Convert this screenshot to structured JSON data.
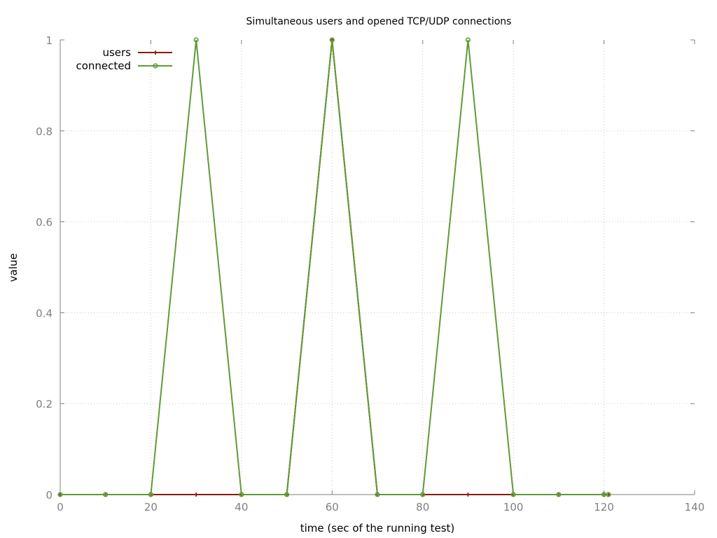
{
  "chart_data": {
    "type": "line",
    "title": "Simultaneous users and opened TCP/UDP connections",
    "xlabel": "time (sec of the running test)",
    "ylabel": "value",
    "xlim": [
      0,
      140
    ],
    "ylim": [
      0,
      1
    ],
    "xticks": [
      "0",
      "20",
      "40",
      "60",
      "80",
      "100",
      "120",
      "140"
    ],
    "yticks": [
      "0",
      "0.2",
      "0.4",
      "0.6",
      "0.8",
      "1"
    ],
    "grid": true,
    "legend_position": "top-left",
    "series": [
      {
        "name": "users",
        "color": "#8b1a0e",
        "marker": "plus",
        "x": [
          0,
          10,
          20,
          30,
          40,
          50,
          60,
          70,
          80,
          90,
          100,
          110,
          120,
          121
        ],
        "y": [
          0,
          0,
          0,
          0,
          0,
          0,
          1,
          0,
          0,
          0,
          0,
          0,
          0,
          0
        ]
      },
      {
        "name": "connected",
        "color": "#5e9c36",
        "marker": "circle",
        "x": [
          0,
          10,
          20,
          30,
          40,
          50,
          60,
          70,
          80,
          90,
          100,
          110,
          120,
          121
        ],
        "y": [
          0,
          0,
          0,
          1,
          0,
          0,
          1,
          0,
          0,
          1,
          0,
          0,
          0,
          0
        ]
      }
    ]
  }
}
